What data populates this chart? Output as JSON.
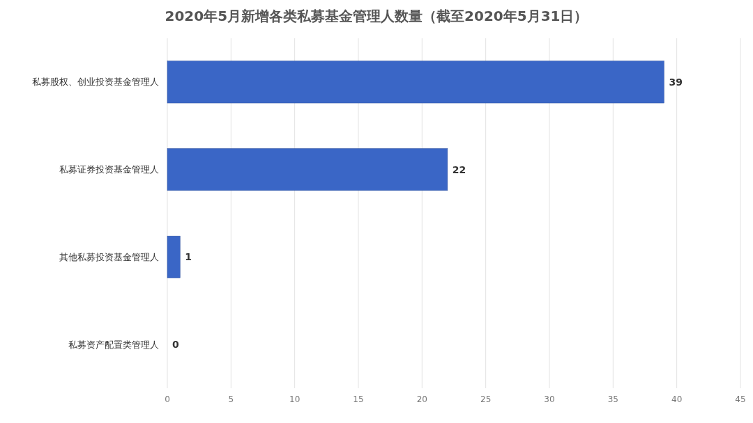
{
  "chart_data": {
    "type": "bar",
    "orientation": "horizontal",
    "title": "2020年5月新增各类私募基金管理人数量（截至2020年5月31日）",
    "categories": [
      "私募股权、创业投资基金管理人",
      "私募证券投资基金管理人",
      "其他私募投资基金管理人",
      "私募资产配置类管理人"
    ],
    "values": [
      39,
      22,
      1,
      0
    ],
    "color": "#3a66c6",
    "xlim": [
      0,
      45
    ],
    "xticks": [
      0,
      5,
      10,
      15,
      20,
      25,
      30,
      35,
      40,
      45
    ],
    "grid": "x",
    "data_labels": true
  }
}
